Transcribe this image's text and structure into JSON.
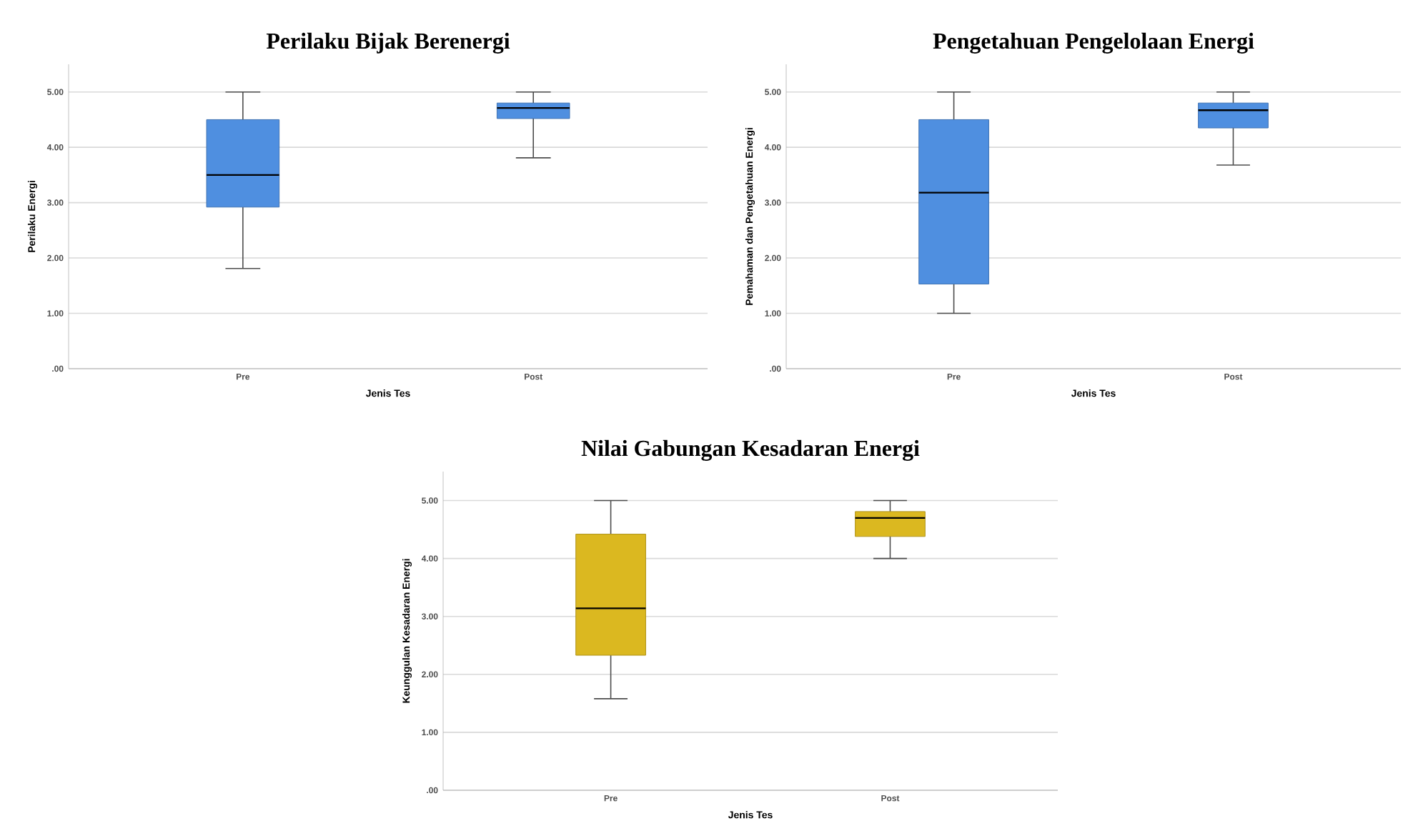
{
  "chart_data": [
    {
      "type": "box",
      "title": "Perilaku Bijak Berenergi",
      "xlabel": "Jenis Tes",
      "ylabel": "Perilaku Energi",
      "categories": [
        "Pre",
        "Post"
      ],
      "ylim": [
        0,
        5.5
      ],
      "yticks": [
        {
          "value": 0,
          "label": ".00"
        },
        {
          "value": 1,
          "label": "1.00"
        },
        {
          "value": 2,
          "label": "2.00"
        },
        {
          "value": 3,
          "label": "3.00"
        },
        {
          "value": 4,
          "label": "4.00"
        },
        {
          "value": 5,
          "label": "5.00"
        }
      ],
      "grid": "y",
      "series": [
        {
          "color": "#4f8fe0",
          "boxes": [
            {
              "low": 1.81,
              "q1": 2.92,
              "median": 3.5,
              "q3": 4.5,
              "high": 5.0
            },
            {
              "low": 3.81,
              "q1": 4.52,
              "median": 4.71,
              "q3": 4.8,
              "high": 5.0
            }
          ]
        }
      ]
    },
    {
      "type": "box",
      "title": "Pengetahuan Pengelolaan Energi",
      "xlabel": "Jenis Tes",
      "ylabel": "Pemahaman dan Pengetahuan Energi",
      "categories": [
        "Pre",
        "Post"
      ],
      "ylim": [
        0,
        5.5
      ],
      "yticks": [
        {
          "value": 0,
          "label": ".00"
        },
        {
          "value": 1,
          "label": "1.00"
        },
        {
          "value": 2,
          "label": "2.00"
        },
        {
          "value": 3,
          "label": "3.00"
        },
        {
          "value": 4,
          "label": "4.00"
        },
        {
          "value": 5,
          "label": "5.00"
        }
      ],
      "grid": "y",
      "series": [
        {
          "color": "#4f8fe0",
          "boxes": [
            {
              "low": 1.0,
              "q1": 1.53,
              "median": 3.18,
              "q3": 4.5,
              "high": 5.0
            },
            {
              "low": 3.68,
              "q1": 4.35,
              "median": 4.67,
              "q3": 4.8,
              "high": 5.0
            }
          ]
        }
      ]
    },
    {
      "type": "box",
      "title": "Nilai Gabungan Kesadaran Energi",
      "xlabel": "Jenis Tes",
      "ylabel": "Keunggulan Kesadaran Energi",
      "categories": [
        "Pre",
        "Post"
      ],
      "ylim": [
        0,
        5.5
      ],
      "yticks": [
        {
          "value": 0,
          "label": ".00"
        },
        {
          "value": 1,
          "label": "1.00"
        },
        {
          "value": 2,
          "label": "2.00"
        },
        {
          "value": 3,
          "label": "3.00"
        },
        {
          "value": 4,
          "label": "4.00"
        },
        {
          "value": 5,
          "label": "5.00"
        }
      ],
      "grid": "y",
      "series": [
        {
          "color": "#dbb820",
          "boxes": [
            {
              "low": 1.58,
              "q1": 2.33,
              "median": 3.14,
              "q3": 4.42,
              "high": 5.0
            },
            {
              "low": 4.0,
              "q1": 4.38,
              "median": 4.7,
              "q3": 4.81,
              "high": 5.0
            }
          ]
        }
      ]
    }
  ]
}
